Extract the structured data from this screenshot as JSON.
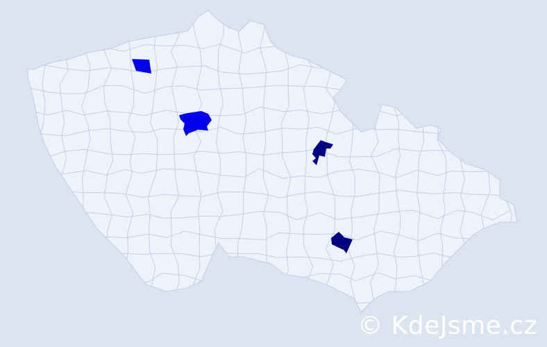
{
  "map": {
    "colors": {
      "background": "#dce4f0",
      "region_fill": "#eef2fa",
      "region_border": "#c5cde8",
      "highlight_high": "#0000ee",
      "highlight_low": "#000080"
    },
    "highlighted_regions": [
      {
        "level": "high",
        "color": "#0000ee"
      },
      {
        "level": "high",
        "color": "#0000ee"
      },
      {
        "level": "low",
        "color": "#000080"
      },
      {
        "level": "low",
        "color": "#000080"
      }
    ]
  },
  "watermark": "© KdeJsme.cz"
}
